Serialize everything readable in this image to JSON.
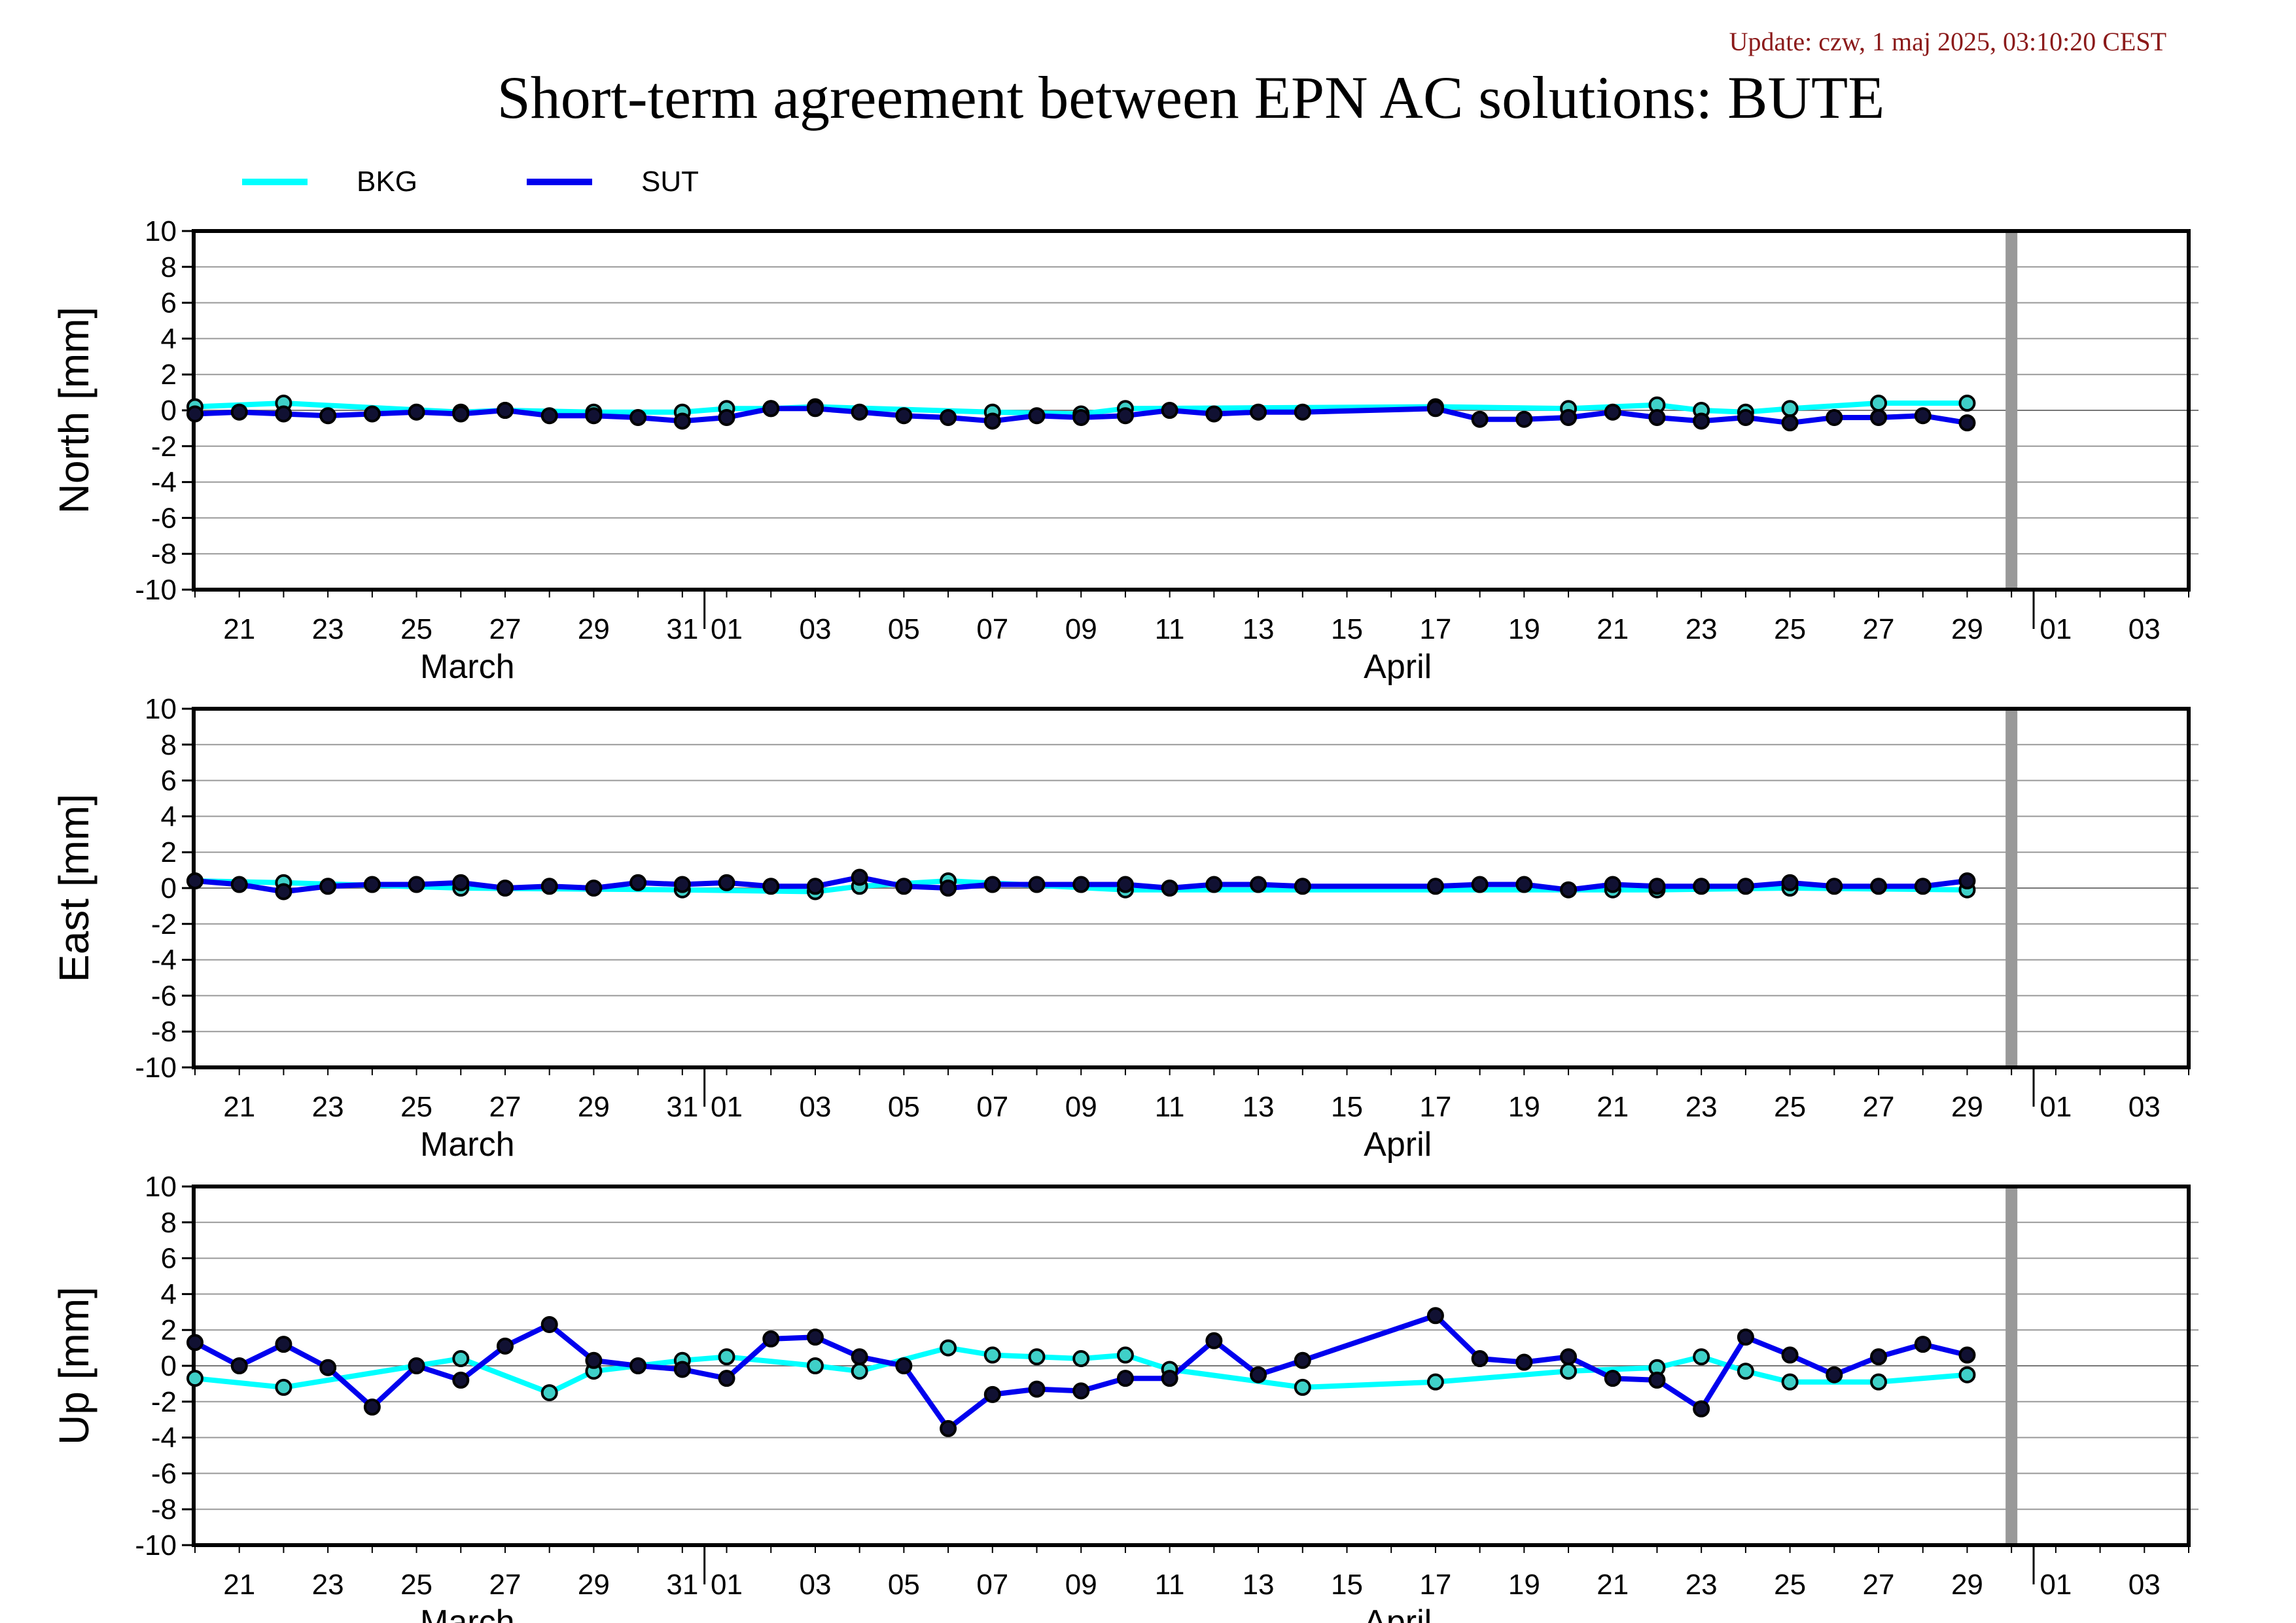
{
  "update_text": "Update: czw, 1 maj 2025, 03:10:20 CEST",
  "title": "Short-term agreement between EPN AC solutions: BUTE",
  "colors": {
    "BKG": "#00ffff",
    "SUT": "#0000ee",
    "marker_edge": "#000000",
    "today_bar": "#999999",
    "grid": "#999999"
  },
  "chart_data": [
    {
      "type": "line",
      "ylabel": "North [mm]",
      "ylim": [
        -10,
        10
      ],
      "yticks": [
        10,
        8,
        6,
        4,
        2,
        0,
        -2,
        -4,
        -6,
        -8,
        -10
      ],
      "grid": "horizontal",
      "x_ticks": [
        "21",
        "23",
        "25",
        "27",
        "29",
        "31",
        "01",
        "03",
        "05",
        "07",
        "09",
        "11",
        "13",
        "15",
        "17",
        "19",
        "21",
        "23",
        "25",
        "27",
        "29",
        "01",
        "03"
      ],
      "month_labels": [
        "March",
        "April"
      ],
      "series": [
        {
          "name": "BKG",
          "x": [
            "2025-03-20",
            "2025-03-22",
            "2025-03-26",
            "2025-03-27",
            "2025-03-29",
            "2025-03-31",
            "2025-04-01",
            "2025-04-02",
            "2025-04-03",
            "2025-04-07",
            "2025-04-09",
            "2025-04-10",
            "2025-04-17",
            "2025-04-20",
            "2025-04-22",
            "2025-04-23",
            "2025-04-24",
            "2025-04-25",
            "2025-04-27",
            "2025-04-29"
          ],
          "values": [
            0.2,
            0.4,
            -0.1,
            0,
            -0.1,
            -0.1,
            0.1,
            0.1,
            0.2,
            -0.1,
            -0.2,
            0.1,
            0.2,
            0.1,
            0.3,
            0,
            -0.1,
            0.1,
            0.4,
            0.4
          ]
        },
        {
          "name": "SUT",
          "x": [
            "2025-03-20",
            "2025-03-21",
            "2025-03-22",
            "2025-03-23",
            "2025-03-24",
            "2025-03-25",
            "2025-03-26",
            "2025-03-27",
            "2025-03-28",
            "2025-03-29",
            "2025-03-30",
            "2025-03-31",
            "2025-04-01",
            "2025-04-02",
            "2025-04-03",
            "2025-04-04",
            "2025-04-05",
            "2025-04-06",
            "2025-04-07",
            "2025-04-08",
            "2025-04-09",
            "2025-04-10",
            "2025-04-11",
            "2025-04-12",
            "2025-04-13",
            "2025-04-14",
            "2025-04-17",
            "2025-04-18",
            "2025-04-19",
            "2025-04-20",
            "2025-04-21",
            "2025-04-22",
            "2025-04-23",
            "2025-04-24",
            "2025-04-25",
            "2025-04-26",
            "2025-04-27",
            "2025-04-28",
            "2025-04-29"
          ],
          "values": [
            -0.2,
            -0.1,
            -0.2,
            -0.3,
            -0.2,
            -0.1,
            -0.2,
            0,
            -0.3,
            -0.3,
            -0.4,
            -0.6,
            -0.4,
            0.1,
            0.1,
            -0.1,
            -0.3,
            -0.4,
            -0.6,
            -0.3,
            -0.4,
            -0.3,
            0,
            -0.2,
            -0.1,
            -0.1,
            0.1,
            -0.5,
            -0.5,
            -0.4,
            -0.1,
            -0.4,
            -0.6,
            -0.4,
            -0.7,
            -0.4,
            -0.4,
            -0.3,
            -0.7
          ]
        }
      ]
    },
    {
      "type": "line",
      "ylabel": "East [mm]",
      "ylim": [
        -10,
        10
      ],
      "yticks": [
        10,
        8,
        6,
        4,
        2,
        0,
        -2,
        -4,
        -6,
        -8,
        -10
      ],
      "grid": "horizontal",
      "x_ticks": [
        "21",
        "23",
        "25",
        "27",
        "29",
        "31",
        "01",
        "03",
        "05",
        "07",
        "09",
        "11",
        "13",
        "15",
        "17",
        "19",
        "21",
        "23",
        "25",
        "27",
        "29",
        "01",
        "03"
      ],
      "month_labels": [
        "March",
        "April"
      ],
      "series": [
        {
          "name": "BKG",
          "x": [
            "2025-03-20",
            "2025-03-22",
            "2025-03-26",
            "2025-03-31",
            "2025-04-03",
            "2025-04-04",
            "2025-04-06",
            "2025-04-10",
            "2025-04-21",
            "2025-04-22",
            "2025-04-25",
            "2025-04-29"
          ],
          "values": [
            0.4,
            0.3,
            0,
            -0.1,
            -0.2,
            0.1,
            0.4,
            -0.1,
            -0.1,
            -0.1,
            0,
            -0.1
          ]
        },
        {
          "name": "SUT",
          "x": [
            "2025-03-20",
            "2025-03-21",
            "2025-03-22",
            "2025-03-23",
            "2025-03-24",
            "2025-03-25",
            "2025-03-26",
            "2025-03-27",
            "2025-03-28",
            "2025-03-29",
            "2025-03-30",
            "2025-03-31",
            "2025-04-01",
            "2025-04-02",
            "2025-04-03",
            "2025-04-04",
            "2025-04-05",
            "2025-04-06",
            "2025-04-07",
            "2025-04-08",
            "2025-04-09",
            "2025-04-10",
            "2025-04-11",
            "2025-04-12",
            "2025-04-13",
            "2025-04-14",
            "2025-04-17",
            "2025-04-18",
            "2025-04-19",
            "2025-04-20",
            "2025-04-21",
            "2025-04-22",
            "2025-04-23",
            "2025-04-24",
            "2025-04-25",
            "2025-04-26",
            "2025-04-27",
            "2025-04-28",
            "2025-04-29"
          ],
          "values": [
            0.4,
            0.2,
            -0.2,
            0.1,
            0.2,
            0.2,
            0.3,
            0,
            0.1,
            0,
            0.3,
            0.2,
            0.3,
            0.1,
            0.1,
            0.6,
            0.1,
            0,
            0.2,
            0.2,
            0.2,
            0.2,
            0,
            0.2,
            0.2,
            0.1,
            0.1,
            0.2,
            0.2,
            -0.1,
            0.2,
            0.1,
            0.1,
            0.1,
            0.3,
            0.1,
            0.1,
            0.1,
            0.4
          ]
        }
      ]
    },
    {
      "type": "line",
      "ylabel": "Up [mm]",
      "ylim": [
        -10,
        10
      ],
      "yticks": [
        10,
        8,
        6,
        4,
        2,
        0,
        -2,
        -4,
        -6,
        -8,
        -10
      ],
      "grid": "horizontal",
      "x_ticks": [
        "21",
        "23",
        "25",
        "27",
        "29",
        "31",
        "01",
        "03",
        "05",
        "07",
        "09",
        "11",
        "13",
        "15",
        "17",
        "19",
        "21",
        "23",
        "25",
        "27",
        "29",
        "01",
        "03"
      ],
      "month_labels": [
        "March",
        "April"
      ],
      "series": [
        {
          "name": "BKG",
          "x": [
            "2025-03-20",
            "2025-03-22",
            "2025-03-26",
            "2025-03-28",
            "2025-03-29",
            "2025-03-31",
            "2025-04-01",
            "2025-04-03",
            "2025-04-04",
            "2025-04-06",
            "2025-04-07",
            "2025-04-08",
            "2025-04-09",
            "2025-04-10",
            "2025-04-11",
            "2025-04-14",
            "2025-04-17",
            "2025-04-20",
            "2025-04-22",
            "2025-04-23",
            "2025-04-24",
            "2025-04-25",
            "2025-04-27",
            "2025-04-29"
          ],
          "values": [
            -0.7,
            -1.2,
            0.4,
            -1.5,
            -0.3,
            0.3,
            0.5,
            0,
            -0.3,
            1,
            0.6,
            0.5,
            0.4,
            0.6,
            -0.2,
            -1.2,
            -0.9,
            -0.3,
            -0.1,
            0.5,
            -0.3,
            -0.9,
            -0.9,
            -0.5
          ]
        },
        {
          "name": "SUT",
          "x": [
            "2025-03-20",
            "2025-03-21",
            "2025-03-22",
            "2025-03-23",
            "2025-03-24",
            "2025-03-25",
            "2025-03-26",
            "2025-03-27",
            "2025-03-28",
            "2025-03-29",
            "2025-03-30",
            "2025-03-31",
            "2025-04-01",
            "2025-04-02",
            "2025-04-03",
            "2025-04-04",
            "2025-04-05",
            "2025-04-06",
            "2025-04-07",
            "2025-04-08",
            "2025-04-09",
            "2025-04-10",
            "2025-04-11",
            "2025-04-12",
            "2025-04-13",
            "2025-04-14",
            "2025-04-17",
            "2025-04-18",
            "2025-04-19",
            "2025-04-20",
            "2025-04-21",
            "2025-04-22",
            "2025-04-23",
            "2025-04-24",
            "2025-04-25",
            "2025-04-26",
            "2025-04-27",
            "2025-04-28",
            "2025-04-29"
          ],
          "values": [
            1.3,
            0,
            1.2,
            -0.1,
            -2.3,
            0,
            -0.8,
            1.1,
            2.3,
            0.3,
            0,
            -0.2,
            -0.7,
            1.5,
            1.6,
            0.5,
            0,
            -3.5,
            -1.6,
            -1.3,
            -1.4,
            -0.7,
            -0.7,
            1.4,
            -0.5,
            0.3,
            2.8,
            0.4,
            0.2,
            0.5,
            -0.7,
            -0.8,
            -2.4,
            1.6,
            0.6,
            -0.5,
            0.5,
            1.2,
            0.6
          ]
        }
      ]
    }
  ]
}
